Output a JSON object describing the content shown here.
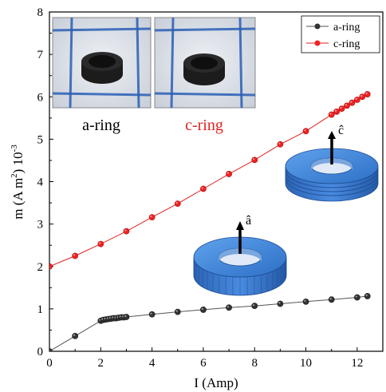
{
  "chart_data": {
    "type": "line",
    "xlabel": "I (Amp)",
    "ylabel_main": "m (A m",
    "ylabel_sup2": "2",
    "ylabel_mid": ") 10",
    "ylabel_sup3": "-3",
    "xlim": [
      0,
      13
    ],
    "ylim": [
      0,
      8
    ],
    "xticks": [
      0,
      2,
      4,
      6,
      8,
      10,
      12
    ],
    "yticks": [
      0,
      1,
      2,
      3,
      4,
      5,
      6,
      7,
      8
    ],
    "legend_position": "top-right",
    "series": [
      {
        "name": "a-ring",
        "color": "#555555",
        "marker_fill": "#333333",
        "x": [
          0,
          1,
          2,
          2.1,
          2.2,
          2.3,
          2.4,
          2.5,
          2.6,
          2.7,
          2.8,
          2.9,
          3,
          4,
          5,
          6,
          7,
          8,
          9,
          10,
          11,
          12,
          12.4
        ],
        "y": [
          0,
          0.36,
          0.72,
          0.74,
          0.75,
          0.76,
          0.77,
          0.78,
          0.78,
          0.79,
          0.8,
          0.8,
          0.81,
          0.87,
          0.93,
          0.98,
          1.03,
          1.07,
          1.12,
          1.17,
          1.22,
          1.27,
          1.3
        ]
      },
      {
        "name": "c-ring",
        "color": "#e02020",
        "marker_fill": "#ee2222",
        "x": [
          0,
          1,
          2,
          3,
          4,
          5,
          6,
          7,
          8,
          9,
          10,
          11,
          11.2,
          11.4,
          11.6,
          11.8,
          12,
          12.2,
          12.4
        ],
        "y": [
          2.0,
          2.25,
          2.53,
          2.83,
          3.16,
          3.48,
          3.83,
          4.18,
          4.51,
          4.88,
          5.19,
          5.58,
          5.65,
          5.72,
          5.79,
          5.86,
          5.93,
          6.0,
          6.06
        ]
      }
    ]
  },
  "inset": {
    "a_caption": "a-ring",
    "c_caption": "c-ring",
    "a_caption_color": "#000000",
    "c_caption_color": "#e02020"
  },
  "ring_labels": {
    "a_hat": "â",
    "c_hat": "ĉ"
  },
  "colors": {
    "ring_blue": "#3a7ed0",
    "photo_bg": "#dfe3ea",
    "grid_line": "#2a5fb5"
  }
}
